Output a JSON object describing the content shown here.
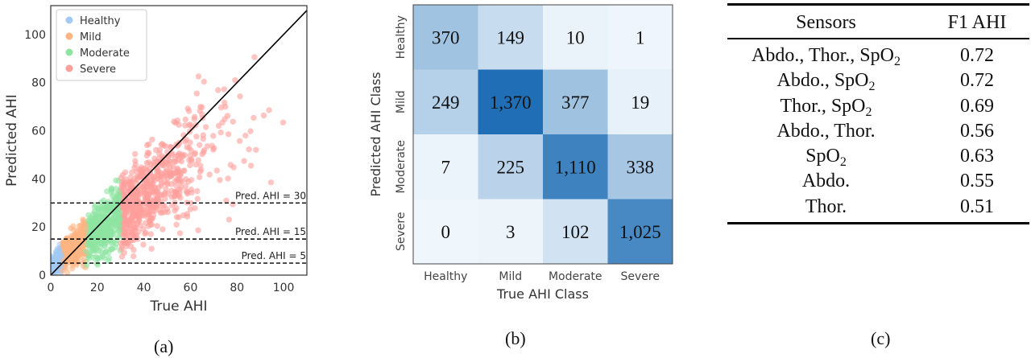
{
  "chart_data": [
    {
      "type": "scatter",
      "panel_label": "(a)",
      "xlabel": "True AHI",
      "ylabel": "Predicted AHI",
      "xlim": [
        0,
        110
      ],
      "ylim": [
        0,
        112
      ],
      "xticks": [
        0,
        20,
        40,
        60,
        80,
        100
      ],
      "yticks": [
        0,
        20,
        40,
        60,
        80,
        100
      ],
      "legend": {
        "placement": "top-left",
        "entries": [
          {
            "name": "Healthy",
            "color": "#a1c9f4"
          },
          {
            "name": "Mild",
            "color": "#ffb482"
          },
          {
            "name": "Moderate",
            "color": "#8de5a1"
          },
          {
            "name": "Severe",
            "color": "#ff9f9b"
          }
        ]
      },
      "reference_lines": [
        {
          "y": 30,
          "label": "Pred. AHI = 30"
        },
        {
          "y": 15,
          "label": "Pred. AHI = 15"
        },
        {
          "y": 5,
          "label": "Pred. AHI = 5"
        }
      ],
      "identity_line": true,
      "class_ranges": [
        {
          "name": "Healthy",
          "x_range": [
            0,
            5
          ]
        },
        {
          "name": "Mild",
          "x_range": [
            5,
            15
          ]
        },
        {
          "name": "Moderate",
          "x_range": [
            15,
            30
          ]
        },
        {
          "name": "Severe",
          "x_range": [
            30,
            108
          ]
        }
      ],
      "grid": false
    },
    {
      "type": "heatmap",
      "panel_label": "(b)",
      "xlabel": "True AHI Class",
      "ylabel": "Predicted AHI Class",
      "categories": [
        "Healthy",
        "Mild",
        "Moderate",
        "Severe"
      ],
      "matrix": [
        [
          370,
          149,
          10,
          1
        ],
        [
          249,
          1370,
          377,
          19
        ],
        [
          7,
          225,
          1110,
          338
        ],
        [
          0,
          3,
          102,
          1025
        ]
      ],
      "labels": [
        [
          "370",
          "149",
          "10",
          "1"
        ],
        [
          "249",
          "1,370",
          "377",
          "19"
        ],
        [
          "7",
          "225",
          "1,110",
          "338"
        ],
        [
          "0",
          "3",
          "102",
          "1,025"
        ]
      ]
    },
    {
      "type": "table",
      "panel_label": "(c)",
      "columns": [
        "Sensors",
        "F1 AHI"
      ],
      "rows": [
        [
          "Abdo., Thor., SpO2",
          "0.72"
        ],
        [
          "Abdo., SpO2",
          "0.72"
        ],
        [
          "Thor., SpO2",
          "0.69"
        ],
        [
          "Abdo., Thor.",
          "0.56"
        ],
        [
          "SpO2",
          "0.63"
        ],
        [
          "Abdo.",
          "0.55"
        ],
        [
          "Thor.",
          "0.51"
        ]
      ]
    }
  ]
}
